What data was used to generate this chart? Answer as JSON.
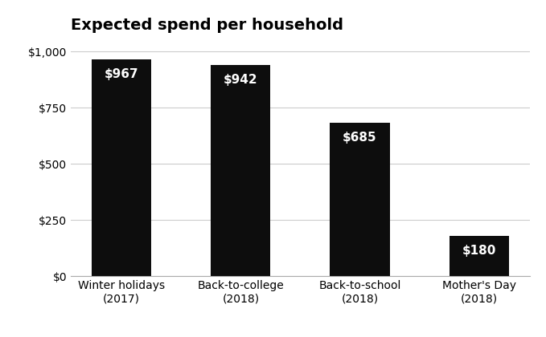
{
  "title": "Expected spend per household",
  "categories": [
    "Winter holidays\n(2017)",
    "Back-to-college\n(2018)",
    "Back-to-school\n(2018)",
    "Mother's Day\n(2018)"
  ],
  "values": [
    967,
    942,
    685,
    180
  ],
  "labels": [
    "$967",
    "$942",
    "$685",
    "$180"
  ],
  "bar_color": "#0d0d0d",
  "label_color": "#ffffff",
  "background_color": "#ffffff",
  "ylim": [
    0,
    1050
  ],
  "yticks": [
    0,
    250,
    500,
    750,
    1000
  ],
  "ytick_labels": [
    "$0",
    "$250",
    "$500",
    "$750",
    "$1,000"
  ],
  "title_fontsize": 14,
  "tick_fontsize": 10,
  "label_fontsize": 11,
  "bar_width": 0.5
}
